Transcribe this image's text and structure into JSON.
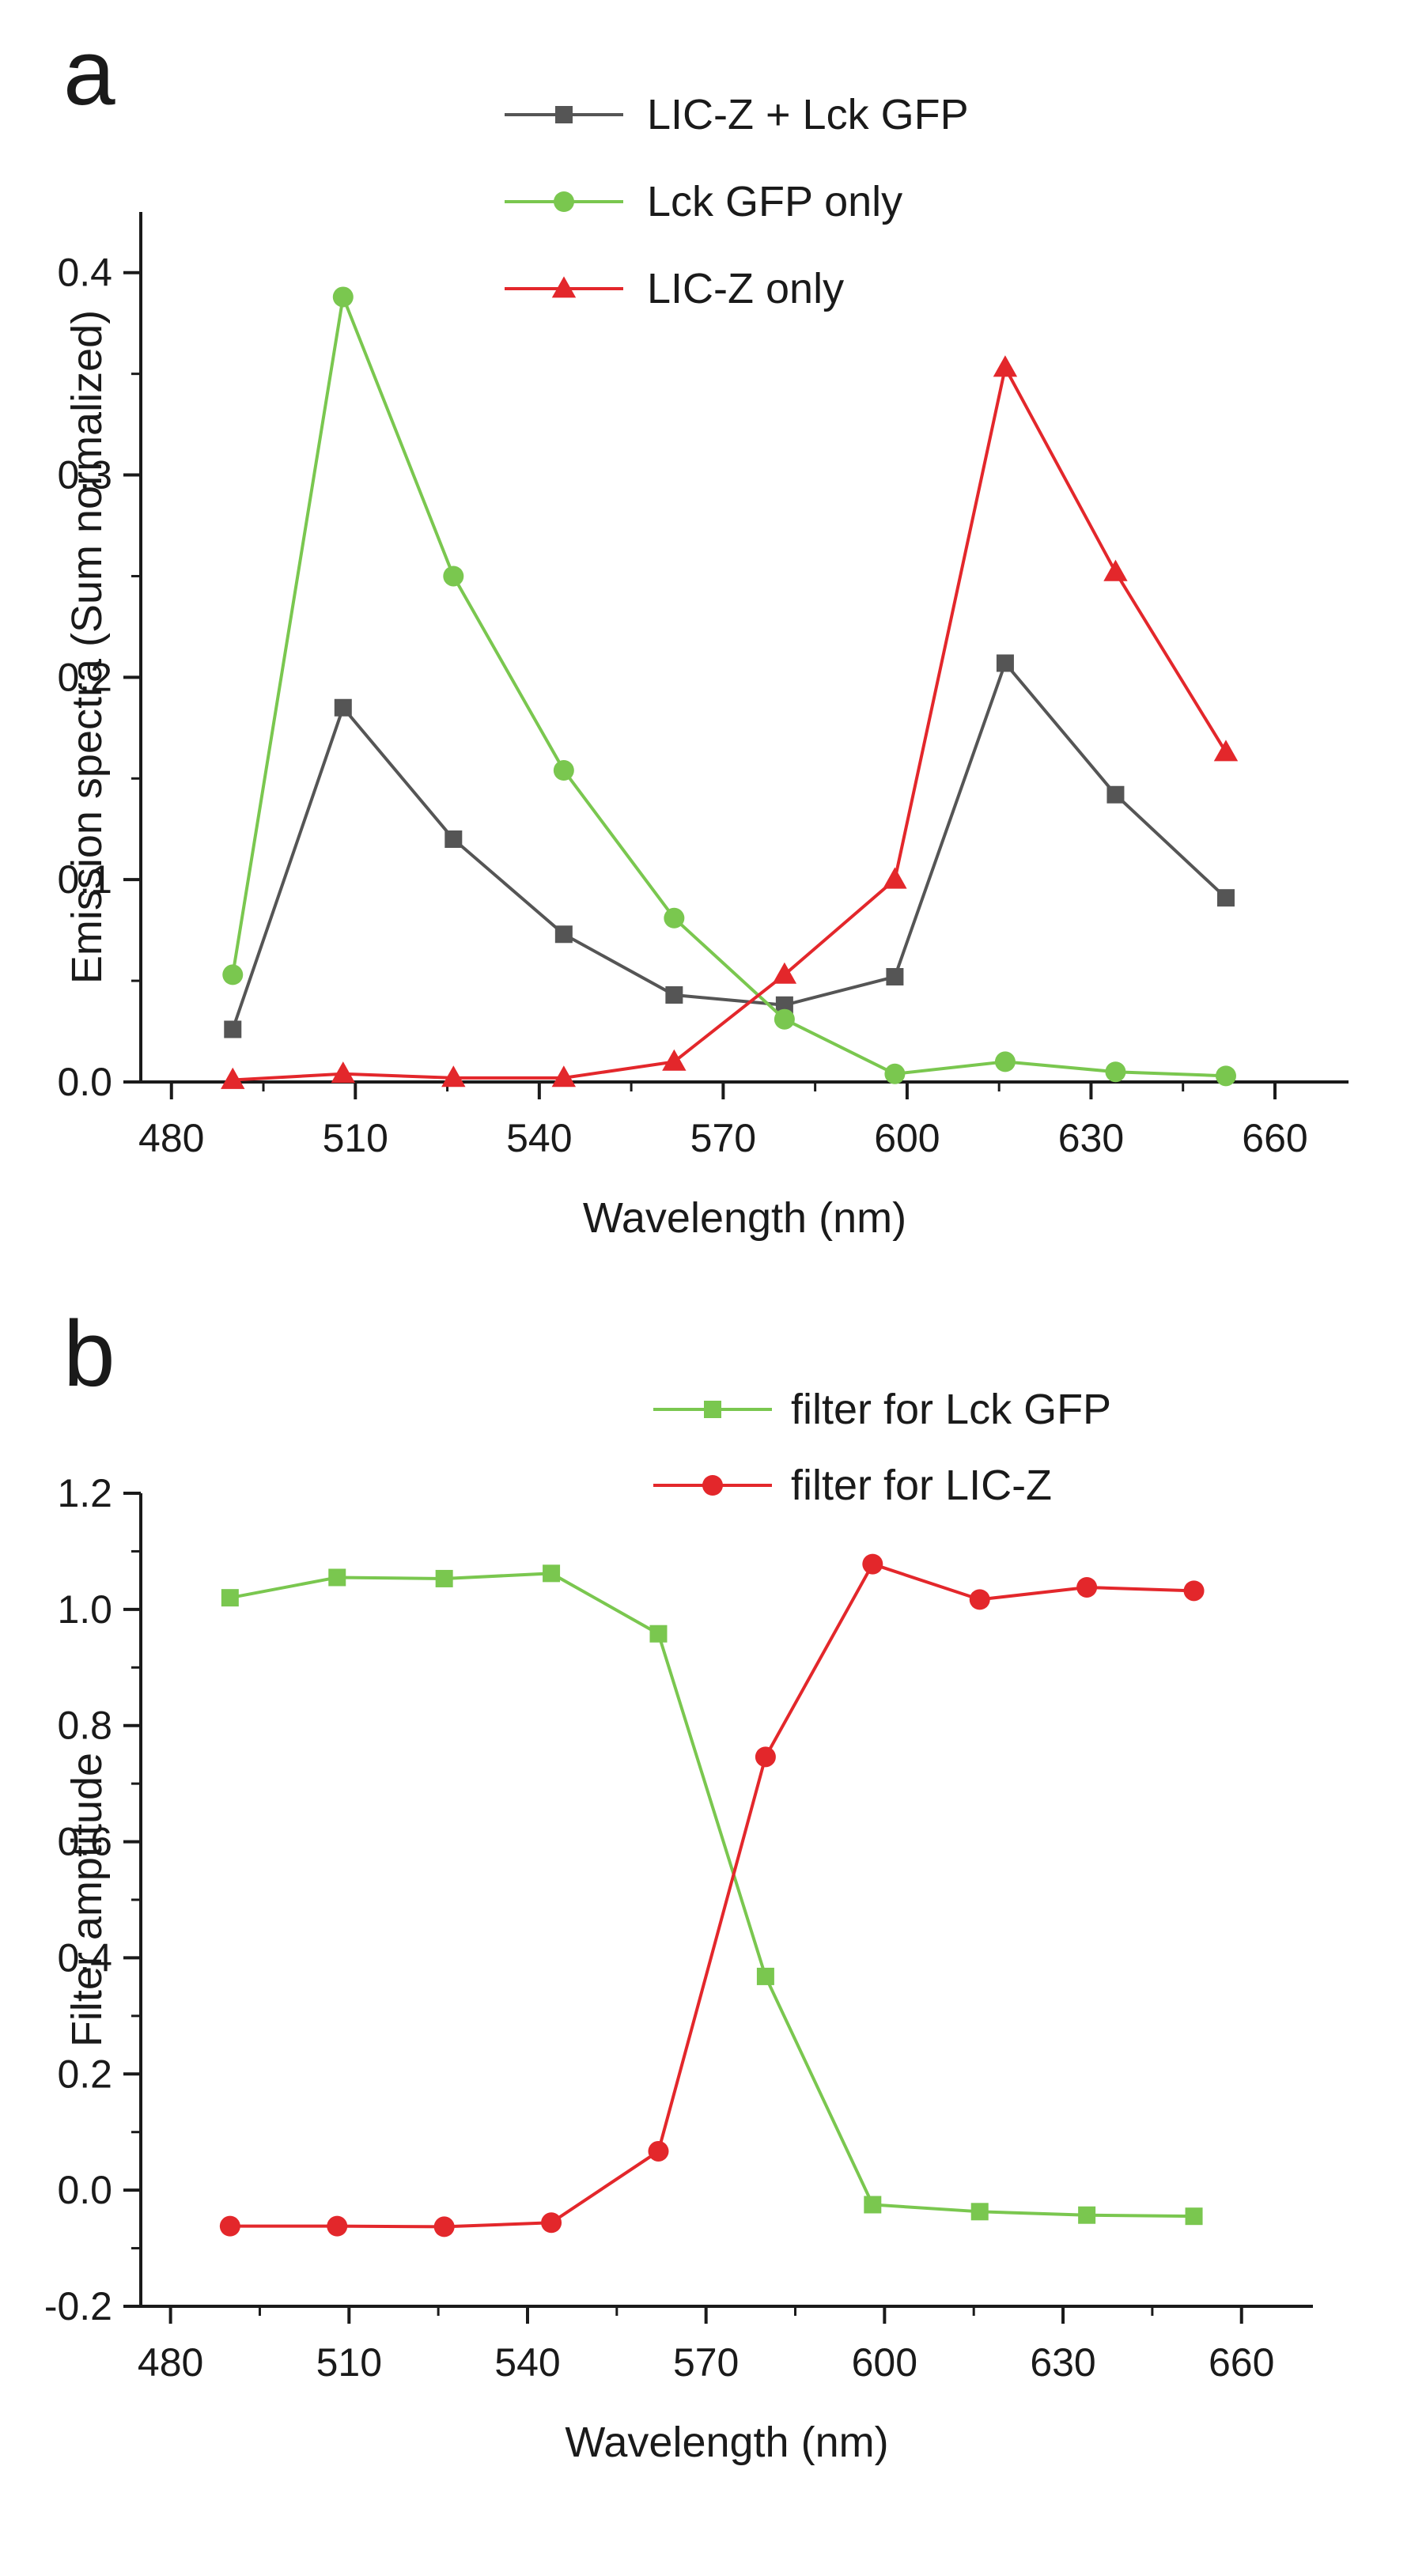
{
  "colors": {
    "black": "#1a1a1a",
    "gray": "#555555",
    "green": "#7ac74f",
    "red": "#e3272b"
  },
  "chart_data": [
    {
      "type": "line",
      "panel_label": "a",
      "title": "",
      "xlabel": "Wavelength (nm)",
      "ylabel": "Emission spectra (Sum normalized)",
      "xlim": [
        475,
        672
      ],
      "ylim": [
        0,
        0.43
      ],
      "xticks": [
        480,
        510,
        540,
        570,
        600,
        630,
        660
      ],
      "xtick_labels": [
        "480",
        "510",
        "540",
        "570",
        "600",
        "630",
        "660"
      ],
      "yticks": [
        0.0,
        0.1,
        0.2,
        0.3,
        0.4
      ],
      "ytick_labels": [
        "0.0",
        "0.1",
        "0.2",
        "0.3",
        "0.4"
      ],
      "grid": false,
      "legend_position": "top-center",
      "x": [
        490,
        508,
        526,
        544,
        562,
        580,
        598,
        616,
        634,
        652
      ],
      "series": [
        {
          "name": "LIC-Z + Lck GFP",
          "marker": "square",
          "color": "#555555",
          "values": [
            0.026,
            0.185,
            0.12,
            0.073,
            0.043,
            0.038,
            0.052,
            0.207,
            0.142,
            0.091
          ]
        },
        {
          "name": "Lck GFP only",
          "marker": "circle",
          "color": "#7ac74f",
          "values": [
            0.053,
            0.388,
            0.25,
            0.154,
            0.081,
            0.031,
            0.004,
            0.01,
            0.005,
            0.003
          ]
        },
        {
          "name": "LIC-Z only",
          "marker": "triangle",
          "color": "#e3272b",
          "values": [
            0.001,
            0.004,
            0.002,
            0.002,
            0.01,
            0.053,
            0.1,
            0.353,
            0.252,
            0.163
          ]
        }
      ]
    },
    {
      "type": "line",
      "panel_label": "b",
      "title": "",
      "xlabel": "Wavelength (nm)",
      "ylabel": "Filter amptitude",
      "xlim": [
        475,
        672
      ],
      "ylim": [
        -0.2,
        1.2
      ],
      "xticks": [
        480,
        510,
        540,
        570,
        600,
        630,
        660
      ],
      "xtick_labels": [
        "480",
        "510",
        "540",
        "570",
        "600",
        "630",
        "660"
      ],
      "yticks": [
        -0.2,
        0.0,
        0.2,
        0.4,
        0.6,
        0.8,
        1.0,
        1.2
      ],
      "ytick_labels": [
        "-0.2",
        "0.0",
        "0.2",
        "0.4",
        "0.6",
        "0.8",
        "1.0",
        "1.2"
      ],
      "grid": false,
      "legend_position": "top-right",
      "x": [
        490,
        508,
        526,
        544,
        562,
        580,
        598,
        616,
        634,
        652
      ],
      "series": [
        {
          "name": "filter for Lck GFP",
          "marker": "square",
          "color": "#7ac74f",
          "values": [
            1.02,
            1.055,
            1.053,
            1.062,
            0.958,
            0.368,
            -0.025,
            -0.037,
            -0.043,
            -0.045
          ]
        },
        {
          "name": "filter for LIC-Z",
          "marker": "circle",
          "color": "#e3272b",
          "values": [
            -0.062,
            -0.062,
            -0.063,
            -0.056,
            0.067,
            0.746,
            1.078,
            1.017,
            1.038,
            1.032
          ]
        }
      ]
    }
  ]
}
